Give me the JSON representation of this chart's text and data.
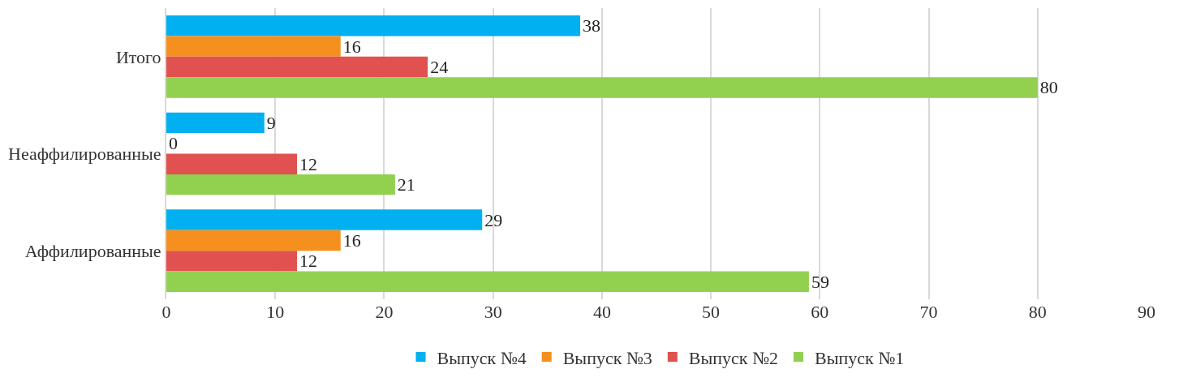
{
  "chart_data": {
    "type": "bar",
    "orientation": "horizontal",
    "categories": [
      "Итого",
      "Неаффилированные",
      "Аффилированные"
    ],
    "series": [
      {
        "name": "Выпуск №4",
        "color": "#00b0f0",
        "values": [
          38,
          9,
          29
        ]
      },
      {
        "name": "Выпуск №3",
        "color": "#f5901e",
        "values": [
          16,
          0,
          16
        ]
      },
      {
        "name": "Выпуск №2",
        "color": "#e0514f",
        "values": [
          24,
          12,
          12
        ]
      },
      {
        "name": "Выпуск №1",
        "color": "#92d050",
        "values": [
          80,
          21,
          59
        ]
      }
    ],
    "xlim": [
      0,
      90
    ],
    "xticks": [
      0,
      10,
      20,
      30,
      40,
      50,
      60,
      70,
      80,
      90
    ],
    "grid": "x",
    "legend": "bottom",
    "data_labels": true
  }
}
